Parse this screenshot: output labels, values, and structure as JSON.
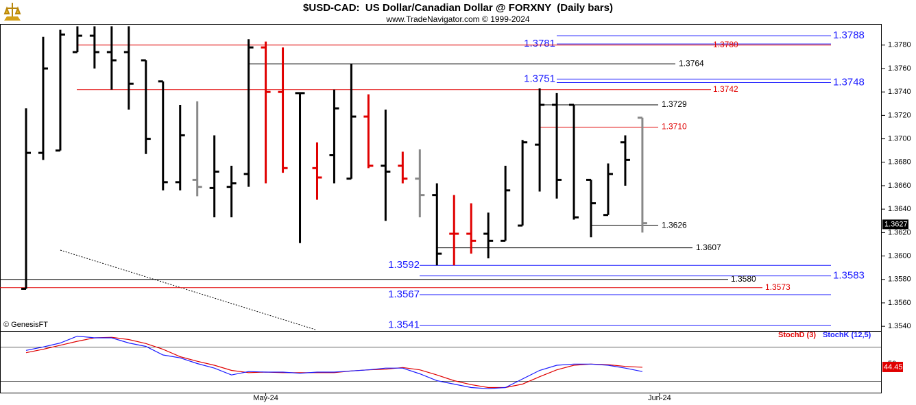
{
  "chart_data": [
    {
      "type": "ohlc",
      "title": "$USD-CAD:  US Dollar/Canadian Dollar @ FORXNY  (Daily bars)",
      "subtitle": "www.TradeNavigator.com © 1999-2024",
      "source": "© GenesisFT",
      "categories": [
        null,
        null,
        null,
        null,
        null,
        null,
        null,
        null,
        null,
        null,
        null,
        null,
        null,
        null,
        "May-24",
        null,
        null,
        null,
        null,
        null,
        null,
        null,
        null,
        null,
        null,
        null,
        null,
        null,
        null,
        null,
        null,
        null,
        null,
        null,
        null,
        null,
        null,
        "Jun-24"
      ],
      "open": [
        1.3572,
        1.3688,
        1.369,
        1.3774,
        1.3788,
        1.3774,
        1.3774,
        1.3767,
        1.3749,
        1.3663,
        1.3665,
        1.3658,
        1.3659,
        1.367,
        1.3778,
        1.374,
        1.3739,
        1.3675,
        1.3686,
        1.3666,
        1.3719,
        1.3677,
        1.3677,
        1.3666,
        1.3652,
        1.3619,
        1.3619,
        1.3619,
        1.3613,
        1.3626,
        1.3695,
        1.3729,
        1.3729,
        1.3665,
        1.3635,
        1.3697,
        1.3718,
        null
      ],
      "high": [
        1.3726,
        1.3787,
        1.3793,
        1.3796,
        1.3796,
        1.3796,
        1.3796,
        1.3767,
        1.3749,
        1.3729,
        1.3732,
        1.3703,
        1.3677,
        1.3785,
        1.3783,
        1.3778,
        1.3739,
        1.3697,
        1.3742,
        1.3764,
        1.3738,
        1.3725,
        1.3689,
        1.3691,
        1.3662,
        1.3652,
        1.3645,
        1.3637,
        1.3677,
        1.3699,
        1.3743,
        1.3739,
        1.3729,
        1.3665,
        1.3679,
        1.3703,
        1.3718,
        null
      ],
      "low": [
        1.3572,
        1.3682,
        1.369,
        1.3774,
        1.376,
        1.3742,
        1.3725,
        1.3687,
        1.3656,
        1.3656,
        1.3651,
        1.3633,
        1.3633,
        1.3659,
        1.3662,
        1.3671,
        1.3611,
        1.3648,
        1.3662,
        1.3666,
        1.3675,
        1.363,
        1.3662,
        1.3633,
        1.3592,
        1.3592,
        1.3602,
        1.3598,
        1.3613,
        1.3626,
        1.3655,
        1.3649,
        1.3631,
        1.3616,
        1.3635,
        1.366,
        1.362,
        null
      ],
      "close": [
        1.3688,
        1.376,
        1.3789,
        1.3788,
        1.3774,
        1.3767,
        1.3747,
        1.37,
        1.3663,
        1.3703,
        1.3659,
        1.3672,
        1.3662,
        1.3778,
        1.374,
        1.3675,
        1.3739,
        1.3667,
        1.3726,
        1.3719,
        1.3677,
        1.3672,
        1.3666,
        1.3652,
        1.3602,
        1.3619,
        1.3613,
        1.3613,
        1.3656,
        1.3697,
        1.3729,
        1.3665,
        1.3633,
        1.3645,
        1.367,
        1.3682,
        1.3628,
        null
      ],
      "colors": [
        "#000",
        "#000",
        "#000",
        "#000",
        "#000",
        "#000",
        "#000",
        "#000",
        "#000",
        "#000",
        "#888",
        "#000",
        "#000",
        "#000",
        "#e00000",
        "#e00000",
        "#000",
        "#e00000",
        "#000",
        "#000",
        "#e00000",
        "#000",
        "#e00000",
        "#888",
        "#000",
        "#e00000",
        "#e00000",
        "#000",
        "#000",
        "#000",
        "#000",
        "#000",
        "#000",
        "#000",
        "#000",
        "#000",
        "#888",
        null
      ],
      "ylim": [
        1.3536,
        1.3798
      ],
      "yticks": [
        {
          "value": 1.354,
          "label": "1.3540"
        },
        {
          "value": 1.356,
          "label": "1.3560"
        },
        {
          "value": 1.358,
          "label": "1.3580"
        },
        {
          "value": 1.36,
          "label": "1.3600"
        },
        {
          "value": 1.362,
          "label": "1.3620"
        },
        {
          "value": 1.364,
          "label": "1.3640"
        },
        {
          "value": 1.366,
          "label": "1.3660"
        },
        {
          "value": 1.368,
          "label": "1.3680"
        },
        {
          "value": 1.37,
          "label": "1.3700"
        },
        {
          "value": 1.372,
          "label": "1.3720"
        },
        {
          "value": 1.374,
          "label": "1.3740"
        },
        {
          "value": 1.376,
          "label": "1.3760"
        },
        {
          "value": 1.378,
          "label": "1.3780"
        }
      ],
      "levels": [
        {
          "value": 1.3788,
          "color": "#1a1aff"
        },
        {
          "value": 1.3781,
          "color": "#1a1aff"
        },
        {
          "value": 1.378,
          "label": "1.3780",
          "color": "#e00000"
        },
        {
          "value": 1.3764,
          "color": "#000000"
        },
        {
          "value": 1.3751,
          "color": "#1a1aff"
        },
        {
          "value": 1.3748,
          "color": "#1a1aff"
        },
        {
          "value": 1.3742,
          "color": "#e00000"
        },
        {
          "value": 1.3729,
          "color": "#000000"
        },
        {
          "value": 1.371,
          "label": "1.3710",
          "color": "#e00000"
        },
        {
          "value": 1.3626,
          "color": "#000000"
        },
        {
          "value": 1.3607,
          "color": "#000000"
        },
        {
          "value": 1.3592,
          "color": "#1a1aff"
        },
        {
          "value": 1.3583,
          "color": "#1a1aff"
        },
        {
          "value": 1.358,
          "label": "1.3580",
          "color": "#000000"
        },
        {
          "value": 1.3573,
          "color": "#e00000"
        },
        {
          "value": 1.3567,
          "color": "#1a1aff"
        },
        {
          "value": 1.3541,
          "color": "#1a1aff"
        }
      ],
      "last_price": 1.3627
    },
    {
      "type": "line",
      "series": [
        {
          "name": "StochD (3)",
          "color": "#e00000",
          "values": [
            70,
            76,
            83,
            90,
            96,
            97,
            93,
            86,
            76,
            63,
            55,
            48,
            39,
            35,
            36,
            35,
            35,
            35,
            35,
            38,
            40,
            41,
            44,
            40,
            31,
            21,
            14,
            9,
            9,
            15,
            28,
            40,
            48,
            50,
            49,
            46,
            44.45,
            null
          ]
        },
        {
          "name": "StochK (12,5)",
          "color": "#1a1aff",
          "values": [
            74,
            80,
            87,
            99,
            96,
            96,
            87,
            81,
            66,
            61,
            51,
            43,
            31,
            37,
            36,
            36,
            34,
            36,
            36,
            38,
            40,
            43,
            43,
            33,
            21,
            15,
            9,
            7,
            9,
            24,
            39,
            48,
            50,
            50,
            48,
            43,
            37,
            null
          ]
        }
      ],
      "ylim": [
        0,
        108
      ],
      "yticks": [
        50
      ],
      "reference_lines": [
        20,
        80
      ]
    }
  ]
}
